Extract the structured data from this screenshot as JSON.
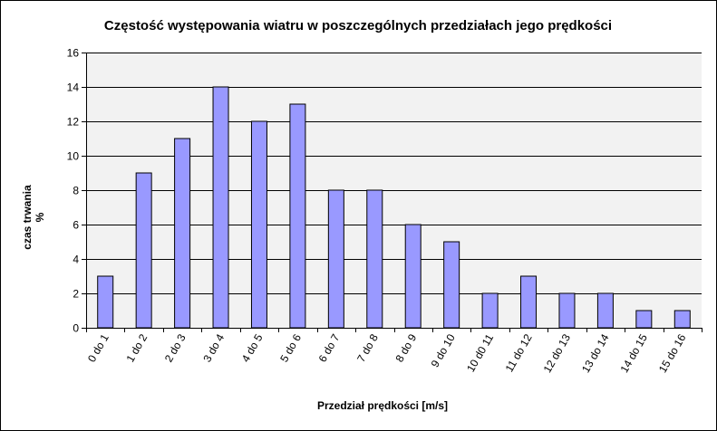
{
  "chart_data": {
    "type": "bar",
    "title": "Częstość występowania wiatru w poszczególnych przedziałach jego prędkości",
    "xlabel": "Przedział prędkości [m/s]",
    "ylabel_line1": "czas trwania",
    "ylabel_line2": "%",
    "ylim": [
      0,
      16
    ],
    "yticks": [
      0,
      2,
      4,
      6,
      8,
      10,
      12,
      14,
      16
    ],
    "grid": true,
    "categories": [
      "0 do 1",
      "1 do 2",
      "2 do 3",
      "3 do 4",
      "4 do 5",
      "5 do 6",
      "6 do 7",
      "7 do 8",
      "8 do 9",
      "9 do 10",
      "10 d0 11",
      "11 do 12",
      "12 do 13",
      "13 do 14",
      "14 do 15",
      "15 do 16"
    ],
    "values": [
      3,
      9,
      11,
      14,
      12,
      13,
      8,
      8,
      6,
      5,
      2,
      3,
      2,
      2,
      1,
      1
    ],
    "colors": {
      "bar": "#9999ff",
      "bar_stroke": "#000000",
      "plot_bg": "#f2f2f2",
      "grid": "#000000"
    }
  }
}
